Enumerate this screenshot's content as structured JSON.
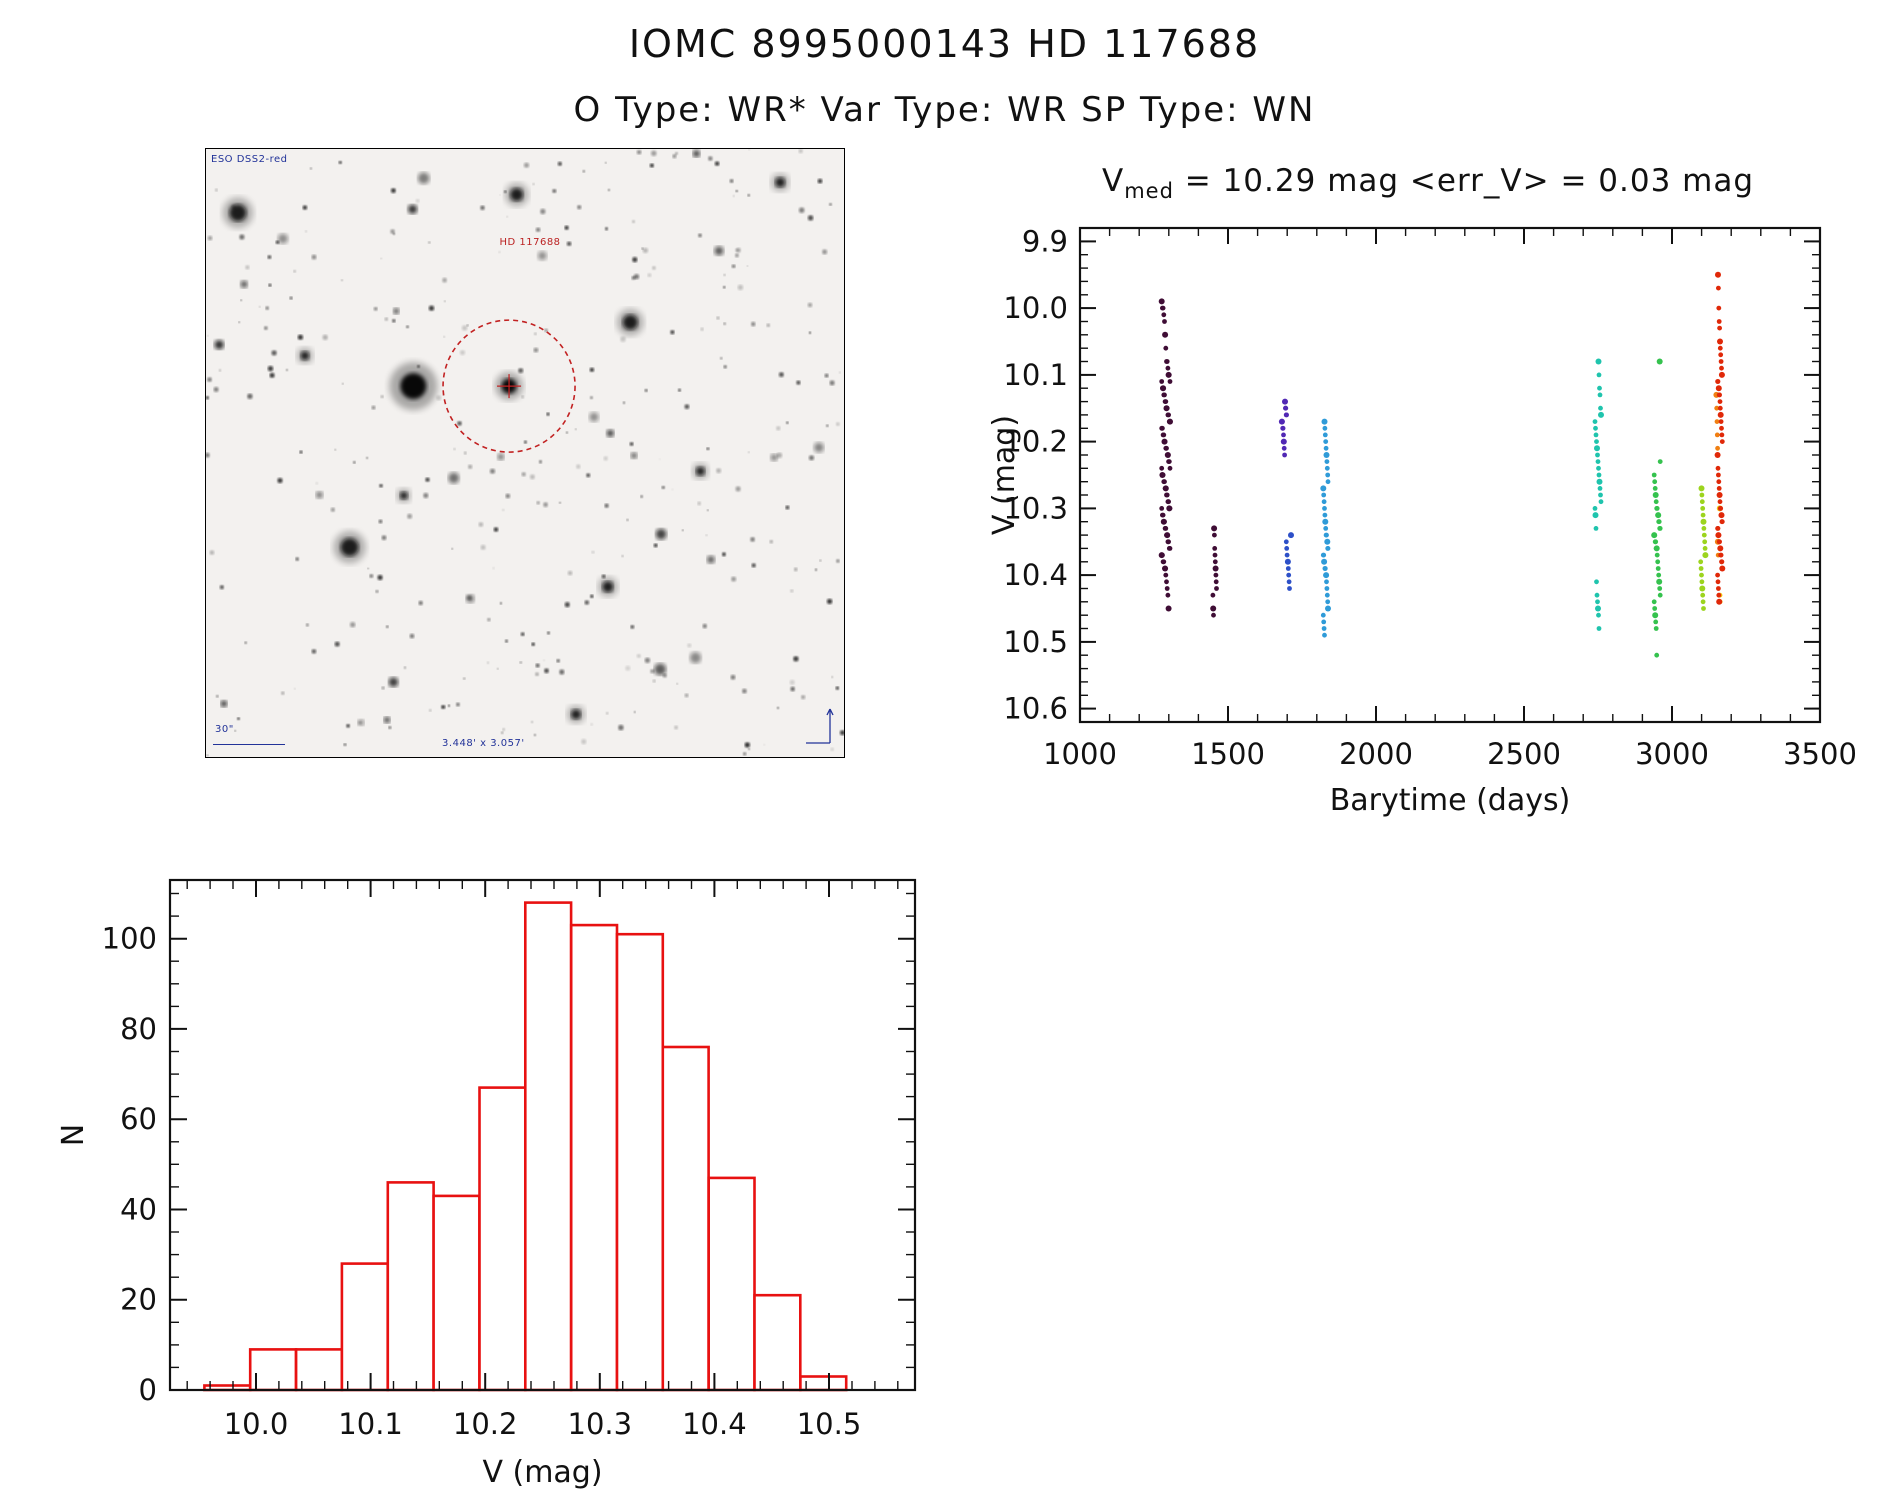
{
  "page": {
    "title": "IOMC 8995000143    HD 117688",
    "subtitle": "O Type: WR*   Var Type: WR   SP Type: WN"
  },
  "finder": {
    "survey_label": "ESO DSS2-red",
    "star_label": "HD 117688",
    "scale_label": "30\"",
    "fov_label": "3.448' x 3.057'"
  },
  "chart_data": [
    {
      "type": "scatter",
      "title": {
        "var": "V",
        "sub": "med",
        "rest": " = 10.29 mag <err_V> = 0.03 mag"
      },
      "xlabel": "Barytime (days)",
      "ylabel": "V (mag)",
      "xlim": [
        1000,
        3500
      ],
      "ylim": [
        9.88,
        10.62
      ],
      "y_inverted_magnitude_axis": true,
      "xticks": [
        1000,
        1500,
        2000,
        2500,
        3000,
        3500
      ],
      "yticks": [
        9.9,
        10.0,
        10.1,
        10.2,
        10.3,
        10.4,
        10.5,
        10.6
      ],
      "x_minor_step": 100,
      "y_minor_step": 0.02,
      "grid": false,
      "legend": "none",
      "clusters": [
        {
          "x": 1290,
          "color": "#3f0d35",
          "spread": 14,
          "ys": [
            9.99,
            10.0,
            10.0,
            10.01,
            10.02,
            10.04,
            10.06,
            10.08,
            10.08,
            10.09,
            10.1,
            10.1,
            10.11,
            10.11,
            10.12,
            10.12,
            10.13,
            10.13,
            10.14,
            10.14,
            10.15,
            10.15,
            10.16,
            10.16,
            10.17,
            10.17,
            10.18,
            10.18,
            10.19,
            10.19,
            10.2,
            10.2,
            10.21,
            10.21,
            10.22,
            10.22,
            10.23,
            10.23,
            10.24,
            10.24,
            10.25,
            10.25,
            10.26,
            10.26,
            10.27,
            10.27,
            10.28,
            10.28,
            10.29,
            10.29,
            10.3,
            10.3,
            10.3,
            10.31,
            10.31,
            10.32,
            10.32,
            10.33,
            10.33,
            10.34,
            10.34,
            10.35,
            10.35,
            10.36,
            10.36,
            10.37,
            10.37,
            10.38,
            10.38,
            10.39,
            10.39,
            10.4,
            10.41,
            10.42,
            10.43,
            10.45
          ]
        },
        {
          "x": 1455,
          "color": "#3f0d35",
          "spread": 6,
          "ys": [
            10.33,
            10.34,
            10.36,
            10.37,
            10.38,
            10.39,
            10.4,
            10.41,
            10.42,
            10.43,
            10.45,
            10.46
          ]
        },
        {
          "x": 1690,
          "color": "#5128b4",
          "spread": 8,
          "ys": [
            10.14,
            10.15,
            10.15,
            10.16,
            10.16,
            10.17,
            10.17,
            10.18,
            10.18,
            10.19,
            10.2,
            10.21,
            10.22
          ]
        },
        {
          "x": 1705,
          "color": "#2d50c8",
          "spread": 8,
          "ys": [
            10.34,
            10.35,
            10.36,
            10.37,
            10.38,
            10.38,
            10.39,
            10.4,
            10.41,
            10.42
          ]
        },
        {
          "x": 1830,
          "color": "#2f9bd8",
          "spread": 8,
          "ys": [
            10.17,
            10.18,
            10.19,
            10.2,
            10.21,
            10.22,
            10.23,
            10.24,
            10.25,
            10.26,
            10.27,
            10.28,
            10.29,
            10.3,
            10.31,
            10.32,
            10.33,
            10.34,
            10.34,
            10.35,
            10.35,
            10.36,
            10.36,
            10.37,
            10.37,
            10.38,
            10.38,
            10.39,
            10.39,
            10.4,
            10.4,
            10.41,
            10.42,
            10.43,
            10.44,
            10.45,
            10.46,
            10.47,
            10.48,
            10.49
          ]
        },
        {
          "x": 2750,
          "color": "#1fc4ad",
          "spread": 10,
          "ys": [
            10.08,
            10.1,
            10.12,
            10.13,
            10.15,
            10.16,
            10.17,
            10.18,
            10.19,
            10.2,
            10.21,
            10.22,
            10.23,
            10.24,
            10.25,
            10.26,
            10.27,
            10.28,
            10.29,
            10.3,
            10.31,
            10.33,
            10.41,
            10.43,
            10.44,
            10.45,
            10.46,
            10.48
          ]
        },
        {
          "x": 2950,
          "color": "#35c24e",
          "spread": 10,
          "ys": [
            10.08,
            10.23,
            10.25,
            10.26,
            10.27,
            10.28,
            10.29,
            10.3,
            10.3,
            10.31,
            10.31,
            10.32,
            10.32,
            10.33,
            10.33,
            10.34,
            10.34,
            10.35,
            10.35,
            10.36,
            10.36,
            10.37,
            10.38,
            10.39,
            10.4,
            10.41,
            10.42,
            10.43,
            10.44,
            10.45,
            10.46,
            10.47,
            10.48,
            10.52
          ]
        },
        {
          "x": 3105,
          "color": "#9cd41e",
          "spread": 8,
          "ys": [
            10.27,
            10.28,
            10.29,
            10.3,
            10.31,
            10.32,
            10.33,
            10.34,
            10.35,
            10.36,
            10.37,
            10.38,
            10.39,
            10.4,
            10.41,
            10.42,
            10.43,
            10.44,
            10.45
          ]
        },
        {
          "x": 3150,
          "color": "#f07f12",
          "spread": 6,
          "ys": [
            10.13,
            10.15,
            10.17,
            10.19,
            10.21,
            10.35,
            10.37
          ]
        },
        {
          "x": 3158,
          "color": "#f2c410",
          "spread": 5,
          "ys": [
            10.3,
            10.43,
            10.44
          ]
        },
        {
          "x": 3162,
          "color": "#e02808",
          "spread": 8,
          "ys": [
            9.95,
            9.97,
            10.0,
            10.02,
            10.03,
            10.05,
            10.06,
            10.07,
            10.08,
            10.09,
            10.1,
            10.1,
            10.11,
            10.11,
            10.12,
            10.12,
            10.13,
            10.13,
            10.14,
            10.15,
            10.16,
            10.17,
            10.18,
            10.19,
            10.2,
            10.22,
            10.24,
            10.25,
            10.26,
            10.27,
            10.28,
            10.29,
            10.3,
            10.3,
            10.31,
            10.31,
            10.32,
            10.32,
            10.33,
            10.33,
            10.34,
            10.34,
            10.35,
            10.35,
            10.36,
            10.36,
            10.37,
            10.37,
            10.38,
            10.38,
            10.39,
            10.4,
            10.41,
            10.42,
            10.43,
            10.44
          ]
        }
      ]
    },
    {
      "type": "bar",
      "title": "",
      "xlabel": "V (mag)",
      "ylabel": "N",
      "xlim": [
        9.925,
        10.575
      ],
      "ylim": [
        0,
        113
      ],
      "xticks": [
        10.0,
        10.1,
        10.2,
        10.3,
        10.4,
        10.5
      ],
      "yticks": [
        0,
        20,
        40,
        60,
        80,
        100
      ],
      "x_minor_step": 0.02,
      "y_minor_step": 5,
      "bin_start": 9.955,
      "bin_width": 0.04,
      "counts": [
        1,
        9,
        9,
        28,
        46,
        43,
        67,
        108,
        103,
        101,
        76,
        47,
        21,
        3
      ],
      "bar_color": "#e81111",
      "grid": false,
      "legend": "none"
    }
  ]
}
